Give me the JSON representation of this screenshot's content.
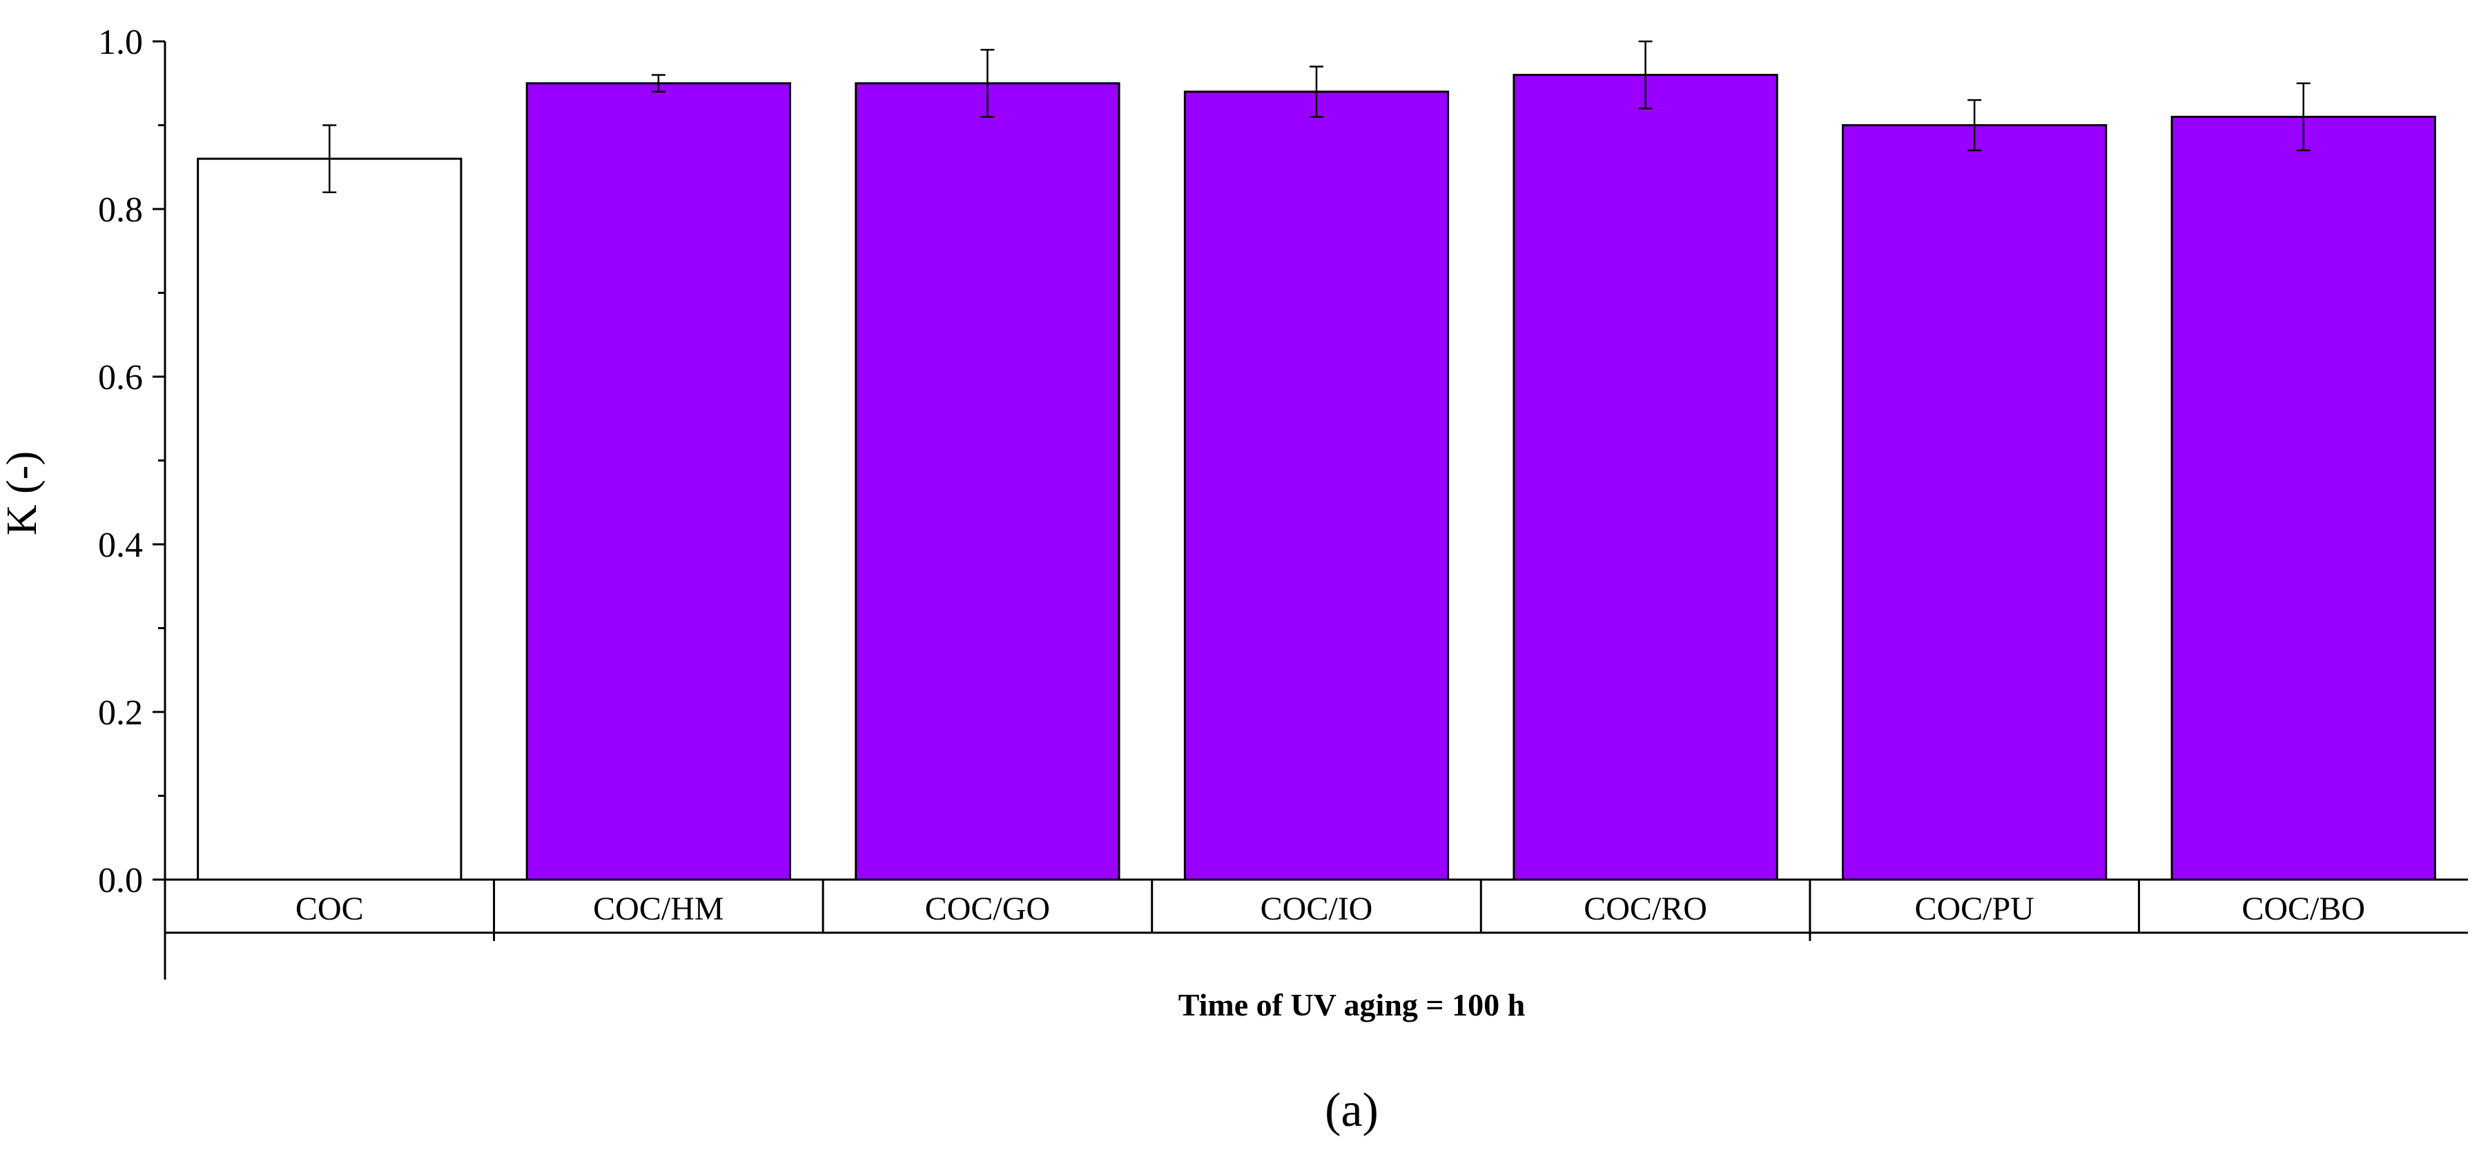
{
  "chart_data": {
    "type": "bar",
    "categories": [
      "COC",
      "COC/HM",
      "COC/GO",
      "COC/IO",
      "COC/RO",
      "COC/PU",
      "COC/BO"
    ],
    "values": [
      0.86,
      0.95,
      0.95,
      0.94,
      0.96,
      0.9,
      0.91
    ],
    "errors": [
      0.04,
      0.01,
      0.04,
      0.03,
      0.04,
      0.03,
      0.04
    ],
    "bar_colors": [
      "#ffffff",
      "#9900ff",
      "#9900ff",
      "#9900ff",
      "#9900ff",
      "#9900ff",
      "#9900ff"
    ],
    "ylabel": "K (-)",
    "xlabel": "Time of UV aging = 100 h",
    "panel_label": "(a)",
    "ylim": [
      0,
      1.0
    ],
    "yticks": [
      0.0,
      0.2,
      0.4,
      0.6,
      0.8,
      1.0
    ],
    "ytick_labels": [
      "0.0",
      "0.2",
      "0.4",
      "0.6",
      "0.8",
      "1.0"
    ],
    "grid": false,
    "legend": "none"
  }
}
